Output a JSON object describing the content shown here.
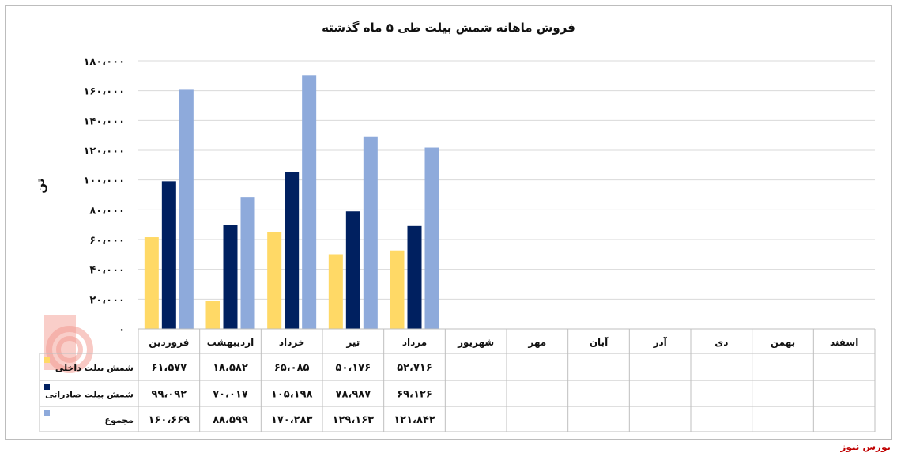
{
  "chart_data": {
    "type": "bar",
    "title": "فروش ماهانه شمش بیلت طی ۵ ماه گذشته",
    "ylabel": "تن",
    "ylim": [
      0,
      180000
    ],
    "yticks": [
      0,
      20000,
      40000,
      60000,
      80000,
      100000,
      120000,
      140000,
      160000,
      180000
    ],
    "ytick_labels": [
      "۰",
      "۲۰،۰۰۰",
      "۴۰،۰۰۰",
      "۶۰،۰۰۰",
      "۸۰،۰۰۰",
      "۱۰۰،۰۰۰",
      "۱۲۰،۰۰۰",
      "۱۴۰،۰۰۰",
      "۱۶۰،۰۰۰",
      "۱۸۰،۰۰۰"
    ],
    "grid": true,
    "legend": "table-left",
    "categories": [
      "فروردین",
      "اردیبهشت",
      "خرداد",
      "تیر",
      "مرداد",
      "شهریور",
      "مهر",
      "آبان",
      "آذر",
      "دی",
      "بهمن",
      "اسفند"
    ],
    "series": [
      {
        "name": "شمش بیلت داخلی",
        "color": "#ffd966",
        "values": [
          61577,
          18582,
          65085,
          50176,
          52716,
          null,
          null,
          null,
          null,
          null,
          null,
          null
        ],
        "labels": [
          "۶۱،۵۷۷",
          "۱۸،۵۸۲",
          "۶۵،۰۸۵",
          "۵۰،۱۷۶",
          "۵۲،۷۱۶",
          "",
          "",
          "",
          "",
          "",
          "",
          ""
        ]
      },
      {
        "name": "شمش بیلت صادراتی",
        "color": "#002060",
        "values": [
          99092,
          70017,
          105198,
          78987,
          69126,
          null,
          null,
          null,
          null,
          null,
          null,
          null
        ],
        "labels": [
          "۹۹،۰۹۲",
          "۷۰،۰۱۷",
          "۱۰۵،۱۹۸",
          "۷۸،۹۸۷",
          "۶۹،۱۲۶",
          "",
          "",
          "",
          "",
          "",
          "",
          ""
        ]
      },
      {
        "name": "مجموع",
        "color": "#8eaadb",
        "values": [
          160669,
          88599,
          170283,
          129163,
          121842,
          null,
          null,
          null,
          null,
          null,
          null,
          null
        ],
        "labels": [
          "۱۶۰،۶۶۹",
          "۸۸،۵۹۹",
          "۱۷۰،۲۸۳",
          "۱۲۹،۱۶۳",
          "۱۲۱،۸۴۲",
          "",
          "",
          "",
          "",
          "",
          "",
          ""
        ]
      }
    ]
  },
  "source": "بورس نیوز"
}
